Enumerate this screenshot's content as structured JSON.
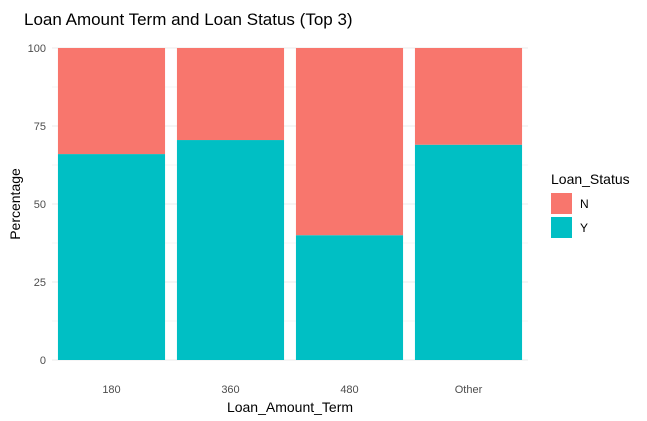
{
  "chart_data": {
    "type": "bar",
    "stacked": true,
    "title": "Loan Amount Term and Loan Status (Top 3)",
    "xlabel": "Loan_Amount_Term",
    "ylabel": "Percentage",
    "categories": [
      "180",
      "360",
      "480",
      "Other"
    ],
    "ylim": [
      0,
      100
    ],
    "yticks": [
      0,
      25,
      50,
      75,
      100
    ],
    "grid": true,
    "legend": {
      "title": "Loan_Status",
      "position": "right"
    },
    "series": [
      {
        "name": "Y",
        "color": "#00BFC4",
        "values": [
          66,
          70.5,
          40,
          69
        ]
      },
      {
        "name": "N",
        "color": "#F8766D",
        "values": [
          34,
          29.5,
          60,
          31
        ]
      }
    ]
  }
}
